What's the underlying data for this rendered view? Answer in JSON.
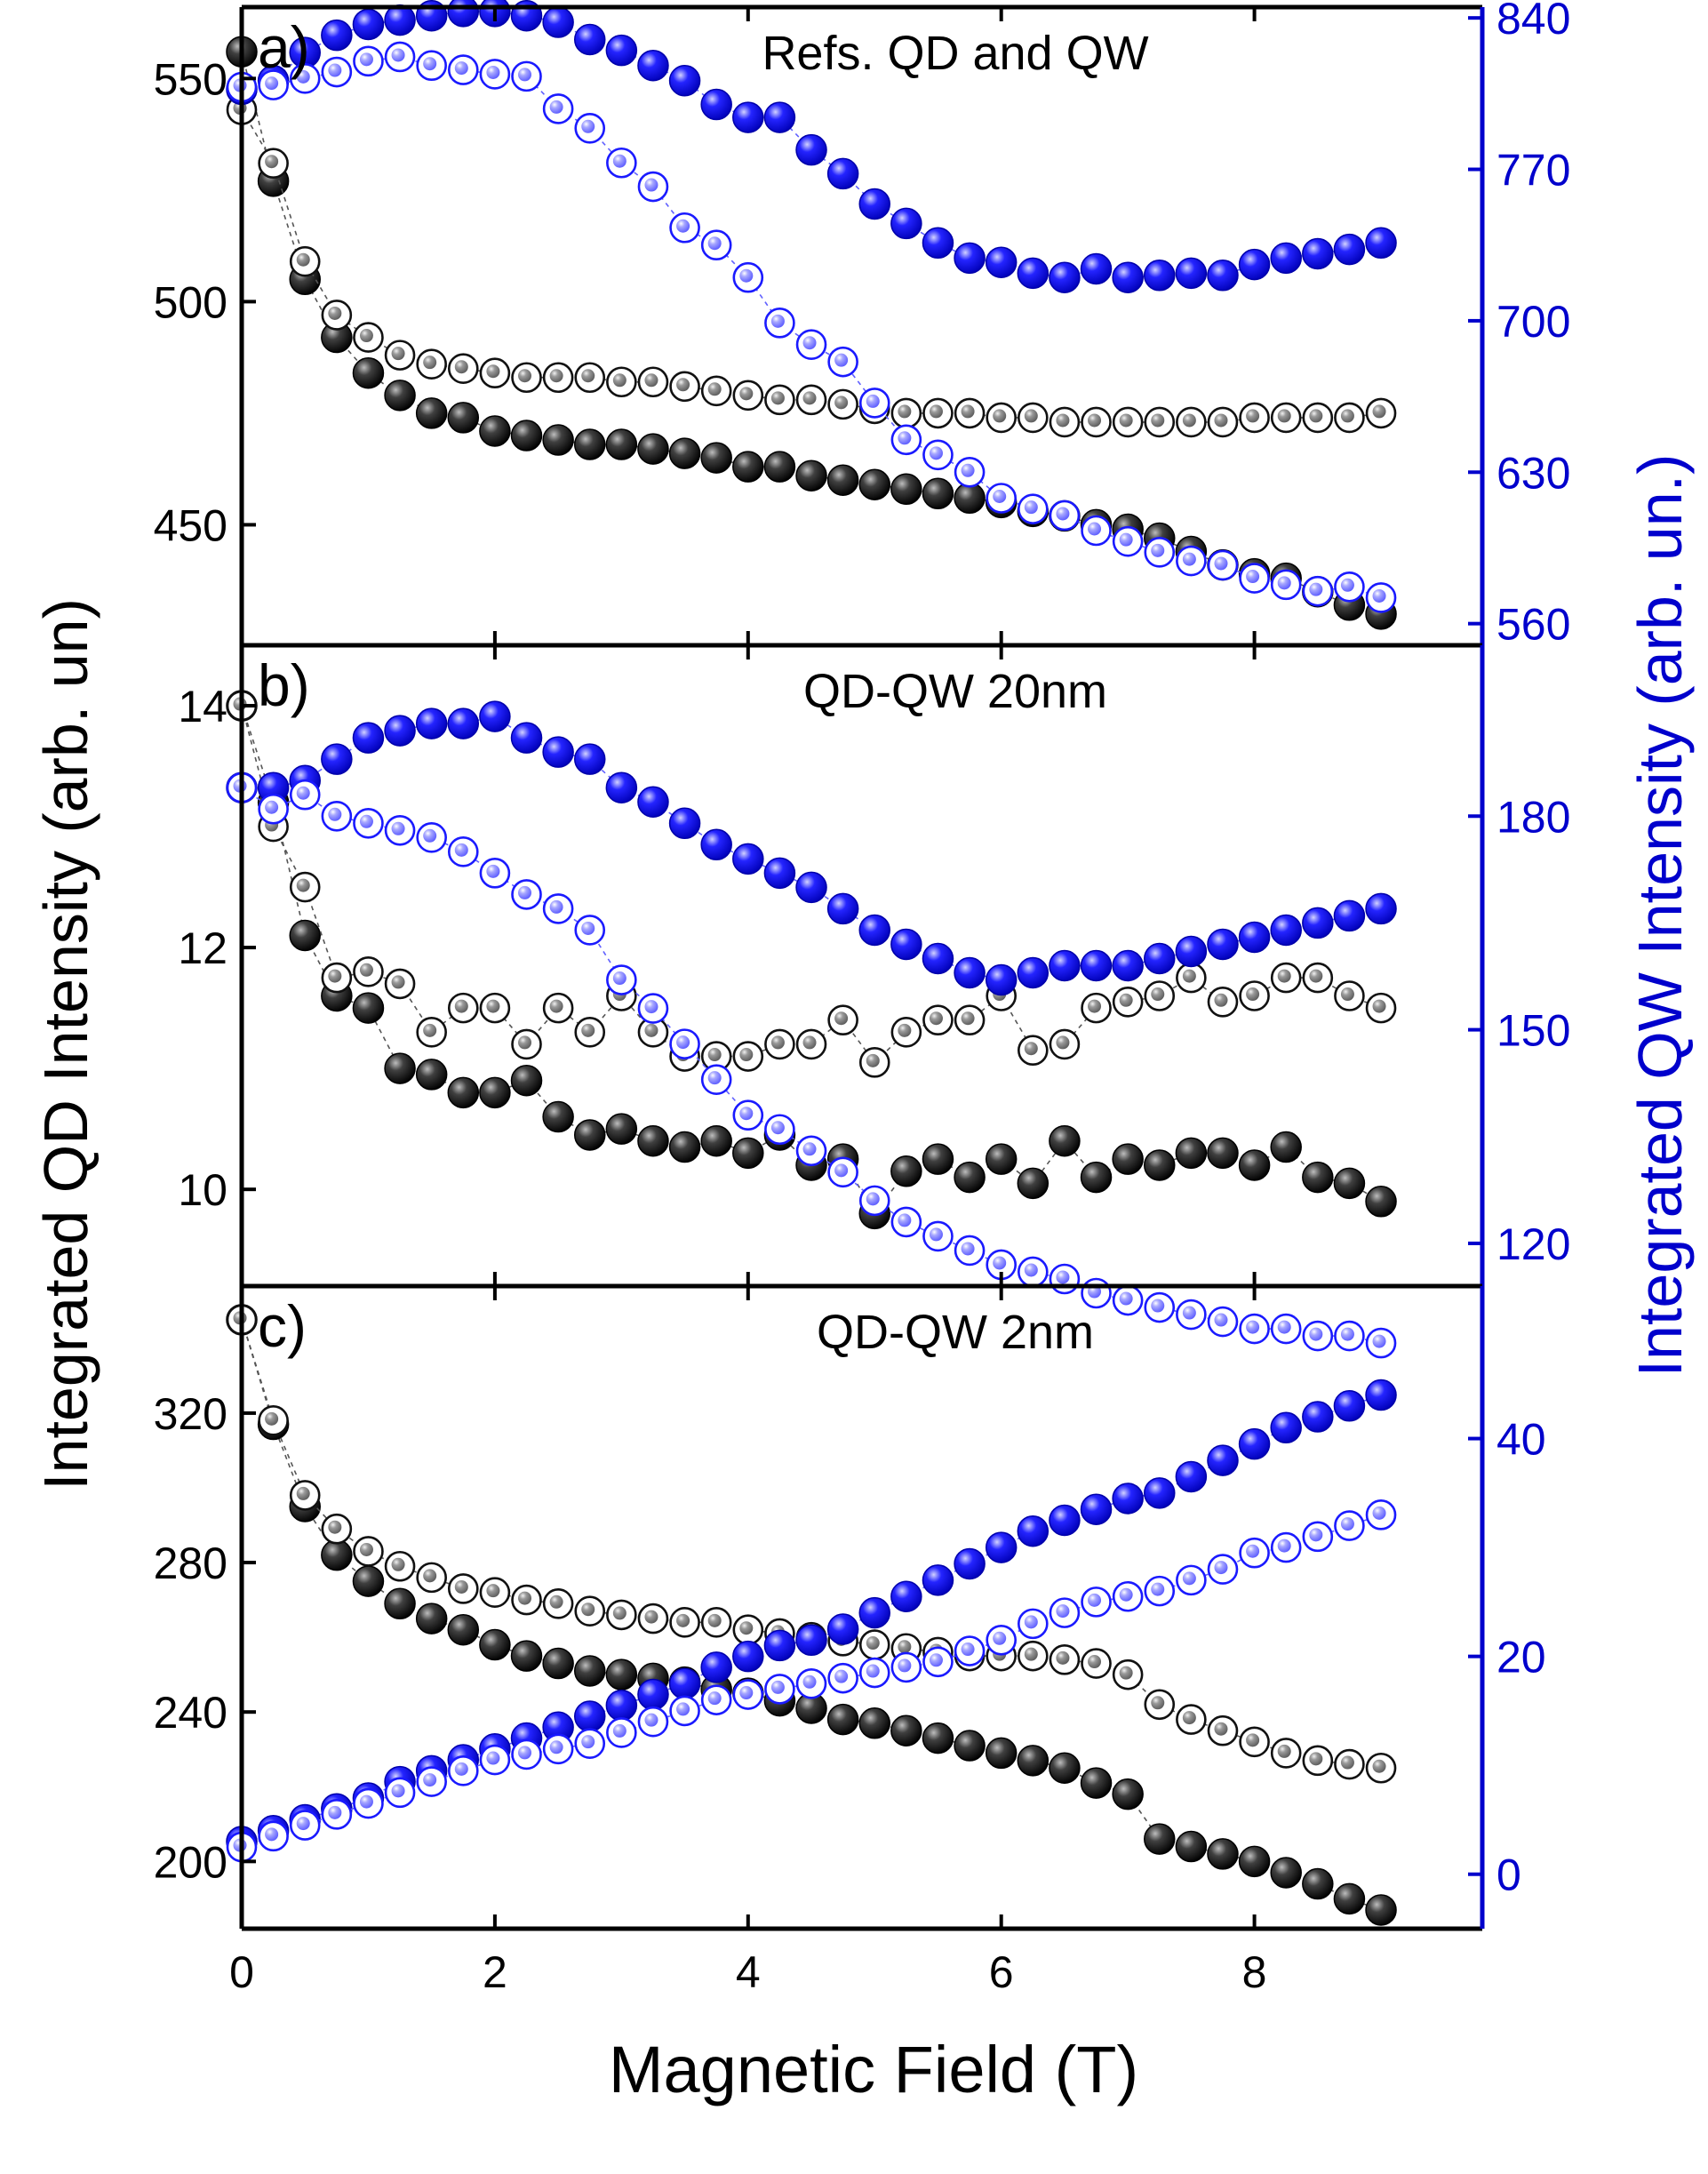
{
  "figure": {
    "xlabel": "Magnetic Field (T)",
    "ylabel_left": "Integrated QD Intensity (arb. un)",
    "ylabel_right": "Integrated QW  Intensity (arb. un.)",
    "x_ticks": [
      "0",
      "2",
      "4",
      "6",
      "8"
    ],
    "colors": {
      "qd": "#000000",
      "qw": "#0000ff",
      "axis_right": "#0000cc"
    }
  },
  "chart_data": [
    {
      "type": "scatter",
      "panel_label": "a)",
      "title": "Refs. QD and QW",
      "xlabel": "Magnetic Field (T)",
      "ylabel_left": "Integrated QD Intensity (arb. un)",
      "ylabel_right": "Integrated QW  Intensity (arb. un.)",
      "xlim": [
        0,
        9.8
      ],
      "ylim_left": [
        423,
        566
      ],
      "ylim_right": [
        550,
        845
      ],
      "yticks_left": [
        450,
        500,
        550
      ],
      "yticks_right": [
        560,
        630,
        700,
        770,
        840
      ],
      "x": [
        0,
        0.25,
        0.5,
        0.75,
        1,
        1.25,
        1.5,
        1.75,
        2,
        2.25,
        2.5,
        2.75,
        3,
        3.25,
        3.5,
        3.75,
        4,
        4.25,
        4.5,
        4.75,
        5,
        5.25,
        5.5,
        5.75,
        6,
        6.25,
        6.5,
        6.75,
        7,
        7.25,
        7.5,
        7.75,
        8,
        8.25,
        8.5,
        8.75,
        9
      ],
      "series": [
        {
          "name": "QD filled",
          "axis": "left",
          "color": "#000000",
          "filled": true,
          "values": [
            556,
            527,
            505,
            492,
            484,
            479,
            475,
            474,
            471,
            470,
            469,
            468,
            468,
            467,
            466,
            465,
            463,
            463,
            461,
            460,
            459,
            458,
            457,
            456,
            455,
            453,
            452,
            450,
            449,
            447,
            444,
            441,
            439,
            438,
            435,
            432,
            430
          ]
        },
        {
          "name": "QD open",
          "axis": "left",
          "color": "#000000",
          "filled": false,
          "values": [
            543,
            531,
            509,
            497,
            492,
            488,
            486,
            485,
            484,
            483,
            483,
            483,
            482,
            482,
            481,
            480,
            479,
            478,
            478,
            477,
            476,
            475,
            475,
            475,
            474,
            474,
            473,
            473,
            473,
            473,
            473,
            473,
            474,
            474,
            474,
            474,
            475
          ]
        },
        {
          "name": "QW filled",
          "axis": "right",
          "color": "#0000ff",
          "filled": true,
          "values": [
            807,
            811,
            824,
            832,
            837,
            839,
            841,
            843,
            843,
            841,
            838,
            830,
            825,
            818,
            811,
            800,
            794,
            794,
            779,
            768,
            754,
            745,
            736,
            729,
            727,
            722,
            720,
            724,
            720,
            721,
            722,
            721,
            726,
            729,
            731,
            733,
            736
          ]
        },
        {
          "name": "QW open",
          "axis": "right",
          "color": "#0000ff",
          "filled": false,
          "values": [
            808,
            809,
            812,
            815,
            820,
            822,
            818,
            816,
            814,
            813,
            798,
            789,
            773,
            762,
            743,
            735,
            720,
            699,
            689,
            681,
            662,
            645,
            638,
            630,
            618,
            613,
            610,
            603,
            598,
            593,
            589,
            587,
            581,
            578,
            575,
            577,
            572
          ]
        }
      ]
    },
    {
      "type": "scatter",
      "panel_label": "b)",
      "title": "QD-QW  20nm",
      "xlabel": "Magnetic Field (T)",
      "ylabel_left": "Integrated QD Intensity (arb. un)",
      "ylabel_right": "Integrated QW  Intensity (arb. un.)",
      "xlim": [
        0,
        9.8
      ],
      "ylim_left": [
        9.2,
        14.5
      ],
      "ylim_right": [
        114,
        204
      ],
      "yticks_left": [
        10,
        12,
        14
      ],
      "yticks_right": [
        120,
        150,
        180
      ],
      "x": [
        0,
        0.25,
        0.5,
        0.75,
        1,
        1.25,
        1.5,
        1.75,
        2,
        2.25,
        2.5,
        2.75,
        3,
        3.25,
        3.5,
        3.75,
        4,
        4.25,
        4.5,
        4.75,
        5,
        5.25,
        5.5,
        5.75,
        6,
        6.25,
        6.5,
        6.75,
        7,
        7.25,
        7.5,
        7.75,
        8,
        8.25,
        8.5,
        8.75,
        9
      ],
      "series": [
        {
          "name": "QD filled",
          "axis": "left",
          "color": "#000000",
          "filled": true,
          "values": [
            14.0,
            13.2,
            12.1,
            11.6,
            11.5,
            11.0,
            10.95,
            10.8,
            10.8,
            10.9,
            10.6,
            10.45,
            10.5,
            10.4,
            10.35,
            10.4,
            10.3,
            10.45,
            10.2,
            10.25,
            9.8,
            10.15,
            10.25,
            10.1,
            10.25,
            10.05,
            10.4,
            10.1,
            10.25,
            10.2,
            10.3,
            10.3,
            10.2,
            10.35,
            10.1,
            10.05,
            9.9
          ]
        },
        {
          "name": "QD open",
          "axis": "left",
          "color": "#000000",
          "filled": false,
          "values": [
            14.0,
            13.0,
            12.5,
            11.75,
            11.8,
            11.7,
            11.3,
            11.5,
            11.5,
            11.2,
            11.5,
            11.3,
            11.6,
            11.3,
            11.1,
            11.1,
            11.1,
            11.2,
            11.2,
            11.4,
            11.05,
            11.3,
            11.4,
            11.4,
            11.6,
            11.15,
            11.2,
            11.5,
            11.55,
            11.6,
            11.75,
            11.55,
            11.6,
            11.75,
            11.75,
            11.6,
            11.5
          ]
        },
        {
          "name": "QW filled",
          "axis": "right",
          "color": "#0000ff",
          "filled": true,
          "values": [
            184,
            184,
            185,
            188,
            191,
            192,
            193,
            193,
            194,
            191,
            189,
            188,
            184,
            182,
            179,
            176,
            174,
            172,
            170,
            167,
            164,
            162,
            160,
            158,
            157,
            158,
            159,
            159,
            159,
            160,
            161,
            162,
            163,
            164,
            165,
            166,
            167
          ]
        },
        {
          "name": "QW open",
          "axis": "right",
          "color": "#0000ff",
          "filled": false,
          "values": [
            184,
            181,
            183,
            180,
            179,
            178,
            177,
            175,
            172,
            169,
            167,
            164,
            157,
            153,
            148,
            143,
            138,
            136,
            133,
            130,
            126,
            123,
            121,
            119,
            117,
            116,
            115,
            113,
            112,
            111,
            110,
            109,
            108,
            108,
            107,
            107,
            106
          ]
        }
      ]
    },
    {
      "type": "scatter",
      "panel_label": "c)",
      "title": "QD-QW  2nm",
      "xlabel": "Magnetic Field (T)",
      "ylabel_left": "Integrated QD Intensity (arb. un)",
      "ylabel_right": "Integrated QW  Intensity (arb. un.)",
      "xlim": [
        0,
        9.8
      ],
      "ylim_left": [
        182,
        354
      ],
      "ylim_right": [
        -5,
        54
      ],
      "yticks_left": [
        200,
        240,
        280,
        320
      ],
      "yticks_right": [
        0,
        20,
        40
      ],
      "x": [
        0,
        0.25,
        0.5,
        0.75,
        1,
        1.25,
        1.5,
        1.75,
        2,
        2.25,
        2.5,
        2.75,
        3,
        3.25,
        3.5,
        3.75,
        4,
        4.25,
        4.5,
        4.75,
        5,
        5.25,
        5.5,
        5.75,
        6,
        6.25,
        6.5,
        6.75,
        7,
        7.25,
        7.5,
        7.75,
        8,
        8.25,
        8.5,
        8.75,
        9
      ],
      "series": [
        {
          "name": "QD filled",
          "axis": "left",
          "color": "#000000",
          "filled": true,
          "values": [
            345,
            317,
            295,
            282,
            275,
            269,
            265,
            262,
            258,
            255,
            253,
            251,
            250,
            249,
            248,
            246,
            245,
            243,
            241,
            238,
            237,
            235,
            233,
            231,
            229,
            227,
            225,
            221,
            218,
            206,
            204,
            202,
            200,
            197,
            194,
            190,
            187
          ]
        },
        {
          "name": "QD open",
          "axis": "left",
          "color": "#000000",
          "filled": false,
          "values": [
            345,
            318,
            298,
            289,
            283,
            279,
            276,
            273,
            272,
            270,
            269,
            267,
            266,
            265,
            264,
            264,
            262,
            261,
            260,
            259,
            258,
            257,
            256,
            255,
            255,
            255,
            254,
            253,
            250,
            242,
            238,
            235,
            232,
            229,
            227,
            226,
            225
          ]
        },
        {
          "name": "QW filled",
          "axis": "right",
          "color": "#0000ff",
          "filled": true,
          "values": [
            3,
            4,
            5,
            6,
            7,
            8.5,
            9.5,
            10.5,
            11.5,
            12.5,
            13.5,
            14.5,
            15.5,
            16.5,
            17.5,
            19,
            20,
            21,
            21.5,
            22.5,
            24,
            25.5,
            27,
            28.5,
            30,
            31.5,
            32.5,
            33.5,
            34.5,
            35,
            36.5,
            38,
            39.5,
            41,
            42,
            43,
            44
          ]
        },
        {
          "name": "QW open",
          "axis": "right",
          "color": "#0000ff",
          "filled": false,
          "values": [
            2.5,
            3.5,
            4.5,
            5.5,
            6.5,
            7.5,
            8.5,
            9.5,
            10.5,
            11,
            11.5,
            12,
            13,
            14,
            15,
            16,
            16.5,
            17,
            17.5,
            18,
            18.5,
            19,
            19.5,
            20.5,
            21.5,
            23,
            24,
            25,
            25.5,
            26,
            27,
            28,
            29.5,
            30,
            31,
            32,
            33
          ]
        }
      ]
    }
  ]
}
